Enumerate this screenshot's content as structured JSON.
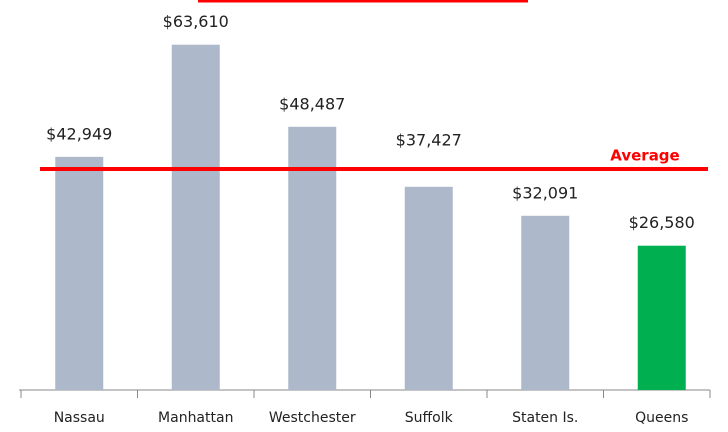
{
  "chart_data": {
    "type": "bar",
    "categories": [
      "Nassau",
      "Manhattan",
      "Westchester",
      "Suffolk",
      "Staten Is.",
      "Queens"
    ],
    "values": [
      42949,
      63610,
      48487,
      37427,
      32091,
      26580
    ],
    "value_labels": [
      "$42,949",
      "$63,610",
      "$48,487",
      "$37,427",
      "$32,091",
      "$26,580"
    ],
    "colors": [
      "#adb9ca",
      "#adb9ca",
      "#adb9ca",
      "#adb9ca",
      "#adb9ca",
      "#00b050"
    ],
    "ylim": [
      0,
      70000
    ],
    "average": 40700,
    "average_label": "Average",
    "average_color": "#ff0000"
  }
}
